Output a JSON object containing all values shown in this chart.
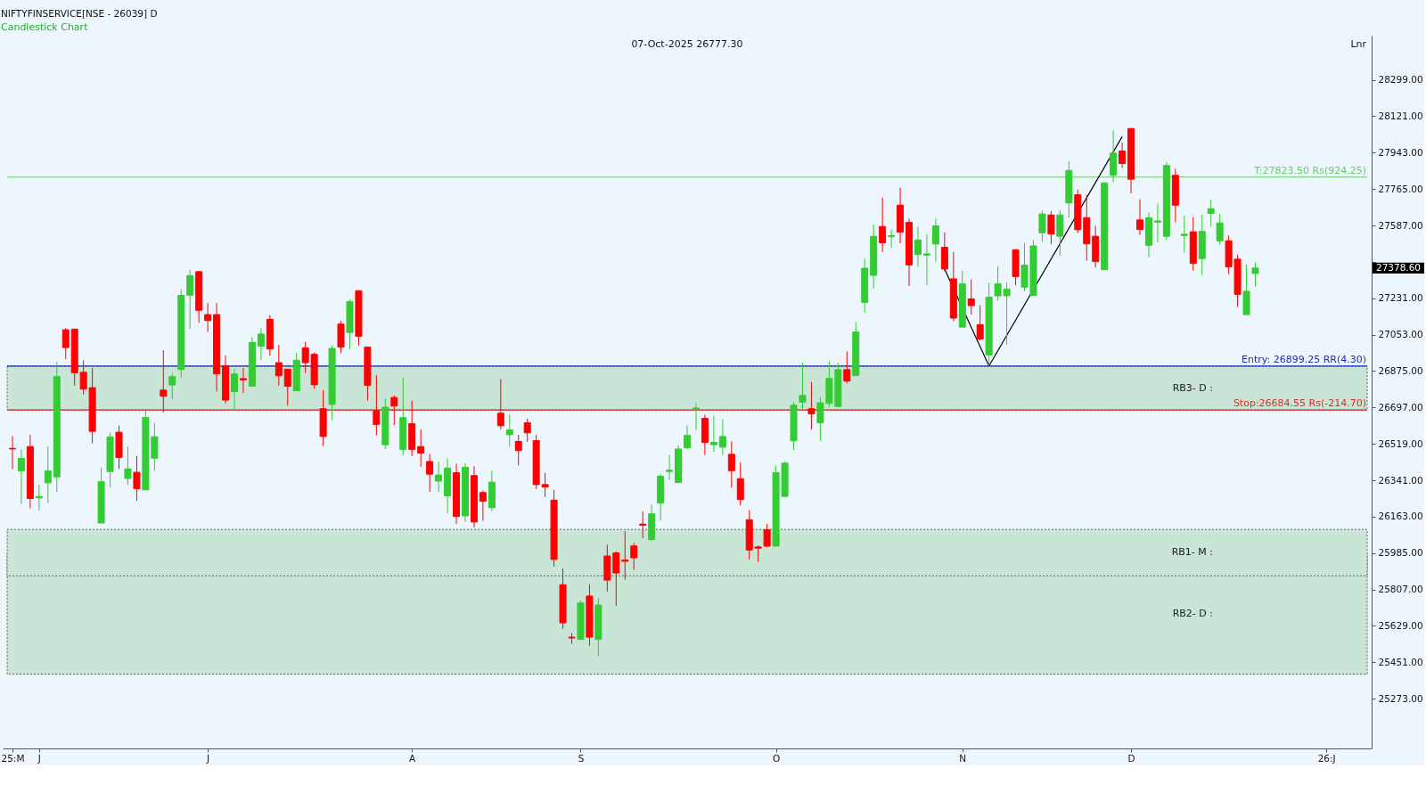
{
  "chart_data": {
    "type": "candlestick",
    "title": "NIFTYFINSERVICE[NSE - 26039] D",
    "subtitle": "Candlestick Chart",
    "categories": [
      "25:M",
      null,
      null,
      "J",
      null,
      null,
      null,
      null,
      null,
      null,
      null,
      null,
      null,
      null,
      null,
      null,
      null,
      null,
      null,
      null,
      null,
      null,
      "J",
      null,
      null,
      null,
      null,
      null,
      null,
      null,
      null,
      null,
      null,
      null,
      null,
      null,
      null,
      null,
      null,
      null,
      null,
      null,
      null,
      null,
      null,
      "A",
      null,
      null,
      null,
      null,
      null,
      null,
      null,
      null,
      null,
      null,
      null,
      null,
      null,
      null,
      null,
      null,
      null,
      null,
      "S",
      null,
      null,
      null,
      null,
      null,
      null,
      null,
      null,
      null,
      null,
      null,
      null,
      null,
      null,
      null,
      null,
      null,
      null,
      null,
      null,
      null,
      "O",
      null,
      null,
      null,
      null,
      null,
      null,
      null,
      null,
      null,
      null,
      null,
      null,
      null,
      null,
      null,
      null,
      null,
      null,
      null,
      null,
      "N",
      null,
      null,
      null,
      null,
      null,
      null,
      null,
      null,
      null,
      null,
      null,
      null,
      null,
      null,
      null,
      null,
      null,
      null,
      "D",
      null,
      null,
      null,
      null,
      null,
      null,
      null,
      null,
      null,
      null,
      null,
      null,
      null,
      null,
      null,
      null,
      null,
      null,
      null,
      null,
      null,
      "26:J",
      null,
      null,
      null,
      null
    ],
    "ohlc": [
      [
        26497,
        26557,
        26396,
        26494
      ],
      [
        26387,
        26492,
        26225,
        26448
      ],
      [
        26506,
        26564,
        26204,
        26252
      ],
      [
        26255,
        26320,
        26193,
        26262
      ],
      [
        26329,
        26506,
        26230,
        26387
      ],
      [
        26358,
        26920,
        26286,
        26848
      ],
      [
        27077,
        27085,
        26933,
        26990
      ],
      [
        27080,
        27083,
        26804,
        26867
      ],
      [
        26869,
        26928,
        26760,
        26787
      ],
      [
        26794,
        26890,
        26521,
        26580
      ],
      [
        26132,
        26403,
        26132,
        26334
      ],
      [
        26384,
        26573,
        26307,
        26553
      ],
      [
        26576,
        26608,
        26396,
        26452
      ],
      [
        26350,
        26506,
        26319,
        26397
      ],
      [
        26380,
        26460,
        26240,
        26300
      ],
      [
        26294,
        26681,
        26294,
        26648
      ],
      [
        26449,
        26621,
        26387,
        26554
      ],
      [
        26782,
        26977,
        26673,
        26752
      ],
      [
        26807,
        26865,
        26737,
        26848
      ],
      [
        26883,
        27275,
        26843,
        27245
      ],
      [
        27246,
        27370,
        27082,
        27342
      ],
      [
        27361,
        27364,
        27111,
        27172
      ],
      [
        27151,
        27207,
        27066,
        27122
      ],
      [
        27151,
        27207,
        26775,
        26861
      ],
      [
        26901,
        26952,
        26717,
        26733
      ],
      [
        26774,
        26887,
        26680,
        26861
      ],
      [
        26838,
        26890,
        26768,
        26832
      ],
      [
        26801,
        27042,
        26801,
        27015
      ],
      [
        26997,
        27085,
        26928,
        27056
      ],
      [
        27128,
        27149,
        26951,
        26983
      ],
      [
        26916,
        27003,
        26804,
        26852
      ],
      [
        26884,
        26887,
        26705,
        26801
      ],
      [
        26779,
        26963,
        26779,
        26928
      ],
      [
        26989,
        27018,
        26865,
        26916
      ],
      [
        26957,
        26967,
        26788,
        26808
      ],
      [
        26691,
        26782,
        26509,
        26555
      ],
      [
        26712,
        27000,
        26635,
        26986
      ],
      [
        27105,
        27122,
        26962,
        26992
      ],
      [
        27064,
        27226,
        26983,
        27214
      ],
      [
        27268,
        27269,
        27000,
        27045
      ],
      [
        26992,
        26995,
        26731,
        26805
      ],
      [
        26681,
        26855,
        26560,
        26614
      ],
      [
        26515,
        26742,
        26492,
        26698
      ],
      [
        26746,
        26756,
        26611,
        26704
      ],
      [
        26492,
        26843,
        26462,
        26647
      ],
      [
        26618,
        26731,
        26458,
        26492
      ],
      [
        26506,
        26589,
        26407,
        26474
      ],
      [
        26433,
        26470,
        26284,
        26371
      ],
      [
        26337,
        26433,
        26284,
        26367
      ],
      [
        26265,
        26448,
        26179,
        26401
      ],
      [
        26378,
        26422,
        26128,
        26164
      ],
      [
        26167,
        26425,
        26137,
        26404
      ],
      [
        26364,
        26410,
        26111,
        26137
      ],
      [
        26281,
        26291,
        26143,
        26239
      ],
      [
        26207,
        26390,
        26189,
        26332
      ],
      [
        26669,
        26836,
        26589,
        26608
      ],
      [
        26564,
        26662,
        26506,
        26587
      ],
      [
        26531,
        26564,
        26414,
        26486
      ],
      [
        26622,
        26643,
        26529,
        26573
      ],
      [
        26535,
        26564,
        26298,
        26320
      ],
      [
        26320,
        26378,
        26259,
        26308
      ],
      [
        26244,
        26294,
        25920,
        25954
      ],
      [
        25830,
        25910,
        25615,
        25644
      ],
      [
        25574,
        25593,
        25542,
        25570
      ],
      [
        25563,
        25753,
        25563,
        25741
      ],
      [
        25775,
        25833,
        25532,
        25574
      ],
      [
        25563,
        25765,
        25481,
        25731
      ],
      [
        25971,
        26026,
        25797,
        25853
      ],
      [
        25986,
        25993,
        25727,
        25888
      ],
      [
        25951,
        26092,
        25855,
        25945
      ],
      [
        26020,
        26035,
        25903,
        25962
      ],
      [
        26127,
        26189,
        26058,
        26121
      ],
      [
        26051,
        26221,
        26044,
        26177
      ],
      [
        26230,
        26371,
        26143,
        26361
      ],
      [
        26384,
        26465,
        26342,
        26390
      ],
      [
        26330,
        26512,
        26330,
        26494
      ],
      [
        26500,
        26608,
        26494,
        26560
      ],
      [
        26688,
        26718,
        26586,
        26694
      ],
      [
        26644,
        26662,
        26465,
        26526
      ],
      [
        26515,
        26657,
        26480,
        26526
      ],
      [
        26503,
        26640,
        26465,
        26555
      ],
      [
        26468,
        26531,
        26305,
        26388
      ],
      [
        26349,
        26429,
        26218,
        26247
      ],
      [
        26148,
        26196,
        25954,
        26000
      ],
      [
        26015,
        26022,
        25942,
        26009
      ],
      [
        26099,
        26128,
        26012,
        26019
      ],
      [
        26019,
        26414,
        26019,
        26378
      ],
      [
        26262,
        26433,
        26262,
        26425
      ],
      [
        26534,
        26724,
        26490,
        26708
      ],
      [
        26723,
        26916,
        26686,
        26756
      ],
      [
        26691,
        26821,
        26589,
        26666
      ],
      [
        26622,
        26749,
        26535,
        26720
      ],
      [
        26717,
        26923,
        26698,
        26839
      ],
      [
        26702,
        26916,
        26702,
        26882
      ],
      [
        26882,
        26971,
        26815,
        26826
      ],
      [
        26853,
        27115,
        26853,
        27066
      ],
      [
        27211,
        27425,
        27160,
        27378
      ],
      [
        27343,
        27592,
        27276,
        27534
      ],
      [
        27582,
        27723,
        27457,
        27502
      ],
      [
        27532,
        27567,
        27476,
        27537
      ],
      [
        27686,
        27771,
        27500,
        27554
      ],
      [
        27602,
        27621,
        27291,
        27394
      ],
      [
        27445,
        27582,
        27385,
        27516
      ],
      [
        27442,
        27544,
        27297,
        27448
      ],
      [
        27496,
        27621,
        27410,
        27585
      ],
      [
        27480,
        27553,
        27364,
        27374
      ],
      [
        27326,
        27457,
        27119,
        27134
      ],
      [
        27090,
        27367,
        27090,
        27301
      ],
      [
        27228,
        27323,
        27151,
        27195
      ],
      [
        27102,
        27197,
        27025,
        27032
      ],
      [
        26954,
        27308,
        26900,
        27236
      ],
      [
        27243,
        27388,
        27218,
        27301
      ],
      [
        27243,
        27308,
        27003,
        27276
      ],
      [
        27468,
        27471,
        27294,
        27337
      ],
      [
        27285,
        27500,
        27265,
        27393
      ],
      [
        27244,
        27515,
        27244,
        27487
      ],
      [
        27551,
        27660,
        27509,
        27643
      ],
      [
        27638,
        27657,
        27495,
        27545
      ],
      [
        27534,
        27660,
        27439,
        27638
      ],
      [
        27697,
        27901,
        27625,
        27856
      ],
      [
        27737,
        27762,
        27551,
        27566
      ],
      [
        27625,
        27737,
        27415,
        27497
      ],
      [
        27534,
        27585,
        27381,
        27410
      ],
      [
        27371,
        27798,
        27371,
        27795
      ],
      [
        27832,
        28050,
        27798,
        27941
      ],
      [
        27951,
        27992,
        27868,
        27890
      ],
      [
        28061,
        28061,
        27744,
        27813
      ],
      [
        27614,
        27715,
        27541,
        27567
      ],
      [
        27490,
        27650,
        27432,
        27625
      ],
      [
        27603,
        27694,
        27505,
        27609
      ],
      [
        27534,
        27897,
        27515,
        27880
      ],
      [
        27832,
        27864,
        27602,
        27686
      ],
      [
        27538,
        27635,
        27454,
        27544
      ],
      [
        27556,
        27628,
        27367,
        27401
      ],
      [
        27425,
        27640,
        27345,
        27558
      ],
      [
        27646,
        27713,
        27582,
        27669
      ],
      [
        27512,
        27643,
        27494,
        27599
      ],
      [
        27512,
        27538,
        27349,
        27384
      ],
      [
        27422,
        27444,
        27189,
        27250
      ],
      [
        27151,
        27396,
        27151,
        27265
      ],
      [
        27352,
        27407,
        27287,
        27378.6
      ],
      null,
      null,
      null,
      null,
      null,
      null,
      null,
      null,
      null,
      null,
      null,
      null
    ],
    "colors": [
      "#ff0000",
      "#33cc33",
      "#ff0000",
      "#33cc33",
      "#33cc33",
      "#33cc33",
      "#ff0000",
      "#ff0000",
      "#ff0000",
      "#ff0000",
      "#33cc33",
      "#33cc33",
      "#ff0000",
      "#33cc33",
      "#ff0000",
      "#33cc33",
      "#33cc33",
      "#ff0000",
      "#33cc33",
      "#33cc33",
      "#33cc33",
      "#ff0000",
      "#ff0000",
      "#ff0000",
      "#ff0000",
      "#33cc33",
      "#ff0000",
      "#33cc33",
      "#33cc33",
      "#ff0000",
      "#ff0000",
      "#ff0000",
      "#33cc33",
      "#ff0000",
      "#ff0000",
      "#ff0000",
      "#33cc33",
      "#ff0000",
      "#33cc33",
      "#ff0000",
      "#ff0000",
      "#ff0000",
      "#33cc33",
      "#ff0000",
      "#33cc33",
      "#ff0000",
      "#ff0000",
      "#ff0000",
      "#33cc33",
      "#33cc33",
      "#ff0000",
      "#33cc33",
      "#ff0000",
      "#ff0000",
      "#33cc33",
      "#ff0000",
      "#33cc33",
      "#ff0000",
      "#ff0000",
      "#ff0000",
      "#ff0000",
      "#ff0000",
      "#ff0000",
      "#ff0000",
      "#33cc33",
      "#ff0000",
      "#33cc33",
      "#ff0000",
      "#ff0000",
      "#ff0000",
      "#ff0000",
      "#ff0000",
      "#33cc33",
      "#33cc33",
      "#33cc33",
      "#33cc33",
      "#33cc33",
      "#33cc33",
      "#ff0000",
      "#33cc33",
      "#33cc33",
      "#ff0000",
      "#ff0000",
      "#ff0000",
      "#ff0000",
      "#ff0000",
      "#33cc33",
      "#33cc33",
      "#33cc33",
      "#33cc33",
      "#ff0000",
      "#33cc33",
      "#33cc33",
      "#33cc33",
      "#ff0000",
      "#33cc33",
      "#33cc33",
      "#33cc33",
      "#ff0000",
      "#33cc33",
      "#ff0000",
      "#ff0000",
      "#33cc33",
      "#33cc33",
      "#33cc33",
      "#ff0000",
      "#ff0000",
      "#33cc33",
      "#ff0000",
      "#ff0000",
      "#33cc33",
      "#33cc33",
      "#33cc33",
      "#ff0000",
      "#33cc33",
      "#33cc33",
      "#33cc33",
      "#ff0000",
      "#33cc33",
      "#33cc33",
      "#ff0000",
      "#ff0000",
      "#ff0000",
      "#33cc33",
      "#33cc33",
      "#ff0000",
      "#ff0000",
      "#ff0000",
      "#33cc33",
      "#33cc33",
      "#33cc33",
      "#ff0000",
      "#33cc33",
      "#ff0000",
      "#33cc33",
      "#33cc33",
      "#33cc33",
      "#ff0000",
      "#ff0000",
      "#33cc33",
      "#33cc33",
      null,
      null,
      null,
      null,
      null,
      null,
      null,
      null,
      null,
      null,
      null,
      null
    ],
    "series": [
      {
        "type": "line",
        "color": "#000000",
        "values": [
          null,
          null,
          null,
          null,
          null,
          null,
          null,
          null,
          null,
          null,
          null,
          null,
          null,
          null,
          null,
          null,
          null,
          null,
          null,
          null,
          null,
          null,
          null,
          null,
          null,
          null,
          null,
          null,
          null,
          null,
          null,
          null,
          null,
          null,
          null,
          null,
          null,
          null,
          null,
          null,
          null,
          null,
          null,
          null,
          null,
          null,
          null,
          null,
          null,
          null,
          null,
          null,
          null,
          null,
          null,
          null,
          null,
          null,
          null,
          null,
          null,
          null,
          null,
          null,
          null,
          null,
          null,
          null,
          null,
          null,
          null,
          null,
          null,
          null,
          null,
          null,
          null,
          null,
          null,
          null,
          null,
          null,
          null,
          null,
          null,
          null,
          null,
          null,
          null,
          null,
          null,
          null,
          null,
          null,
          null,
          null,
          null,
          null,
          null,
          null,
          null,
          null,
          null,
          null,
          null,
          27374,
          null,
          null,
          null,
          null,
          26900,
          null,
          null,
          null,
          null,
          null,
          null,
          null,
          null,
          null,
          null,
          null,
          null,
          null,
          null,
          28021,
          null,
          null,
          null,
          null,
          null,
          null,
          null,
          null,
          null,
          null,
          null,
          null,
          null,
          null,
          null,
          null,
          null,
          null,
          null,
          null,
          null,
          null,
          null,
          null,
          null,
          null,
          null
        ]
      }
    ],
    "ylim": [
      25030,
      28515
    ],
    "yticks": [
      {
        "value": 25273,
        "label": "25273.00"
      },
      {
        "value": 25451,
        "label": "25451.00"
      },
      {
        "value": 25629,
        "label": "25629.00"
      },
      {
        "value": 25807,
        "label": "25807.00"
      },
      {
        "value": 25985,
        "label": "25985.00"
      },
      {
        "value": 26163,
        "label": "26163.00"
      },
      {
        "value": 26341,
        "label": "26341.00"
      },
      {
        "value": 26519,
        "label": "26519.00"
      },
      {
        "value": 26697,
        "label": "26697.00"
      },
      {
        "value": 26875,
        "label": "26875.00"
      },
      {
        "value": 27053,
        "label": "27053.00"
      },
      {
        "value": 27231,
        "label": "27231.00"
      },
      {
        "value": 27409,
        "label": null
      },
      {
        "value": 27587,
        "label": "27587.00"
      },
      {
        "value": 27765,
        "label": "27765.00"
      },
      {
        "value": 27943,
        "label": "27943.00"
      },
      {
        "value": 28121,
        "label": "28121.00"
      },
      {
        "value": 28299,
        "label": "28299.00"
      }
    ],
    "ref_lines": [
      {
        "axis": "y",
        "value": 27823.5,
        "label": "T:27823.50 Rs(924.25)",
        "color": "#66cc66"
      },
      {
        "axis": "y",
        "value": 26899.25,
        "label": "Entry: 26899.25 RR(4.30)",
        "color": "#1c2db8"
      },
      {
        "axis": "y",
        "value": 26684.55,
        "label": "Stop:26684.55 Rs(-214.70)",
        "color": "#e02828"
      }
    ],
    "bands": [
      {
        "axis": "y",
        "from": 26684.55,
        "to": 26899.25,
        "label": "RB3- D :",
        "color": "#c9e5d5"
      },
      {
        "axis": "y",
        "from": 25393,
        "to": 25986,
        "label": "RB2- D :",
        "color": "#c9e5d5"
      },
      {
        "axis": "y",
        "from": 25874,
        "to": 26101,
        "label": "RB1- M :",
        "color": "#c9e5d5"
      }
    ],
    "annotations": [
      "07-Oct-2025 26777.30",
      "Lnr",
      "27378.60"
    ]
  }
}
